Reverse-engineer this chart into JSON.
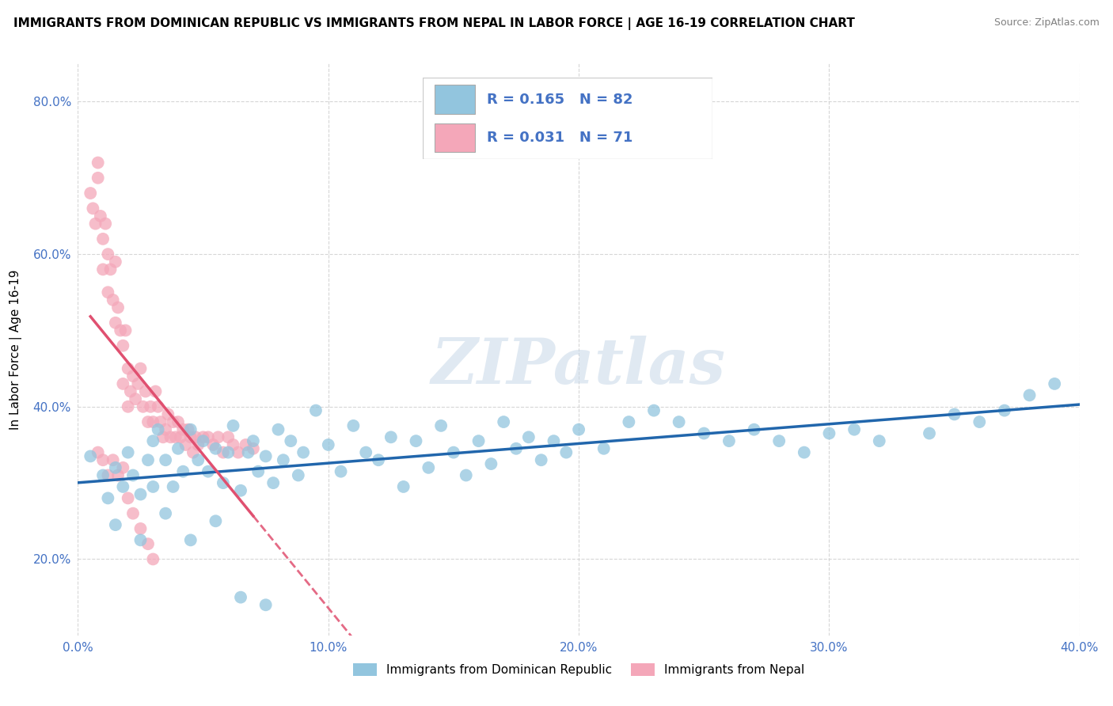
{
  "title": "IMMIGRANTS FROM DOMINICAN REPUBLIC VS IMMIGRANTS FROM NEPAL IN LABOR FORCE | AGE 16-19 CORRELATION CHART",
  "source": "Source: ZipAtlas.com",
  "ylabel": "In Labor Force | Age 16-19",
  "xlim": [
    0.0,
    0.4
  ],
  "ylim": [
    0.1,
    0.85
  ],
  "xticks": [
    0.0,
    0.1,
    0.2,
    0.3,
    0.4
  ],
  "yticks": [
    0.2,
    0.4,
    0.6,
    0.8
  ],
  "xtick_labels": [
    "0.0%",
    "10.0%",
    "20.0%",
    "30.0%",
    "40.0%"
  ],
  "ytick_labels": [
    "20.0%",
    "40.0%",
    "60.0%",
    "80.0%"
  ],
  "R_blue": 0.165,
  "N_blue": 82,
  "R_pink": 0.031,
  "N_pink": 71,
  "blue_color": "#92c5de",
  "pink_color": "#f4a7b9",
  "blue_line_color": "#2166ac",
  "pink_line_color": "#e05070",
  "legend_label_blue": "Immigrants from Dominican Republic",
  "legend_label_pink": "Immigrants from Nepal",
  "watermark": "ZIPatlas",
  "background_color": "#ffffff",
  "grid_color": "#cccccc",
  "blue_scatter_x": [
    0.005,
    0.01,
    0.012,
    0.015,
    0.018,
    0.02,
    0.022,
    0.025,
    0.028,
    0.03,
    0.03,
    0.032,
    0.035,
    0.038,
    0.04,
    0.042,
    0.045,
    0.048,
    0.05,
    0.052,
    0.055,
    0.058,
    0.06,
    0.062,
    0.065,
    0.068,
    0.07,
    0.072,
    0.075,
    0.078,
    0.08,
    0.082,
    0.085,
    0.088,
    0.09,
    0.095,
    0.1,
    0.105,
    0.11,
    0.115,
    0.12,
    0.125,
    0.13,
    0.135,
    0.14,
    0.145,
    0.15,
    0.155,
    0.16,
    0.165,
    0.17,
    0.175,
    0.18,
    0.185,
    0.19,
    0.195,
    0.2,
    0.21,
    0.22,
    0.23,
    0.24,
    0.25,
    0.26,
    0.27,
    0.28,
    0.29,
    0.3,
    0.31,
    0.32,
    0.34,
    0.35,
    0.36,
    0.37,
    0.38,
    0.39,
    0.015,
    0.025,
    0.035,
    0.045,
    0.055,
    0.065,
    0.075
  ],
  "blue_scatter_y": [
    0.335,
    0.31,
    0.28,
    0.32,
    0.295,
    0.34,
    0.31,
    0.285,
    0.33,
    0.355,
    0.295,
    0.37,
    0.33,
    0.295,
    0.345,
    0.315,
    0.37,
    0.33,
    0.355,
    0.315,
    0.345,
    0.3,
    0.34,
    0.375,
    0.29,
    0.34,
    0.355,
    0.315,
    0.335,
    0.3,
    0.37,
    0.33,
    0.355,
    0.31,
    0.34,
    0.395,
    0.35,
    0.315,
    0.375,
    0.34,
    0.33,
    0.36,
    0.295,
    0.355,
    0.32,
    0.375,
    0.34,
    0.31,
    0.355,
    0.325,
    0.38,
    0.345,
    0.36,
    0.33,
    0.355,
    0.34,
    0.37,
    0.345,
    0.38,
    0.395,
    0.38,
    0.365,
    0.355,
    0.37,
    0.355,
    0.34,
    0.365,
    0.37,
    0.355,
    0.365,
    0.39,
    0.38,
    0.395,
    0.415,
    0.43,
    0.245,
    0.225,
    0.26,
    0.225,
    0.25,
    0.15,
    0.14
  ],
  "pink_scatter_x": [
    0.005,
    0.006,
    0.007,
    0.008,
    0.008,
    0.009,
    0.01,
    0.01,
    0.011,
    0.012,
    0.012,
    0.013,
    0.014,
    0.015,
    0.015,
    0.016,
    0.017,
    0.018,
    0.018,
    0.019,
    0.02,
    0.02,
    0.021,
    0.022,
    0.023,
    0.024,
    0.025,
    0.026,
    0.027,
    0.028,
    0.029,
    0.03,
    0.031,
    0.032,
    0.033,
    0.034,
    0.035,
    0.036,
    0.037,
    0.038,
    0.039,
    0.04,
    0.041,
    0.042,
    0.043,
    0.044,
    0.045,
    0.046,
    0.047,
    0.048,
    0.05,
    0.052,
    0.054,
    0.056,
    0.058,
    0.06,
    0.062,
    0.064,
    0.067,
    0.07,
    0.008,
    0.01,
    0.012,
    0.014,
    0.016,
    0.018,
    0.02,
    0.022,
    0.025,
    0.028,
    0.03
  ],
  "pink_scatter_y": [
    0.68,
    0.66,
    0.64,
    0.72,
    0.7,
    0.65,
    0.62,
    0.58,
    0.64,
    0.6,
    0.55,
    0.58,
    0.54,
    0.59,
    0.51,
    0.53,
    0.5,
    0.48,
    0.43,
    0.5,
    0.4,
    0.45,
    0.42,
    0.44,
    0.41,
    0.43,
    0.45,
    0.4,
    0.42,
    0.38,
    0.4,
    0.38,
    0.42,
    0.4,
    0.38,
    0.36,
    0.37,
    0.39,
    0.36,
    0.38,
    0.36,
    0.38,
    0.36,
    0.37,
    0.35,
    0.37,
    0.36,
    0.34,
    0.36,
    0.35,
    0.36,
    0.36,
    0.35,
    0.36,
    0.34,
    0.36,
    0.35,
    0.34,
    0.35,
    0.345,
    0.34,
    0.33,
    0.31,
    0.33,
    0.31,
    0.32,
    0.28,
    0.26,
    0.24,
    0.22,
    0.2
  ]
}
